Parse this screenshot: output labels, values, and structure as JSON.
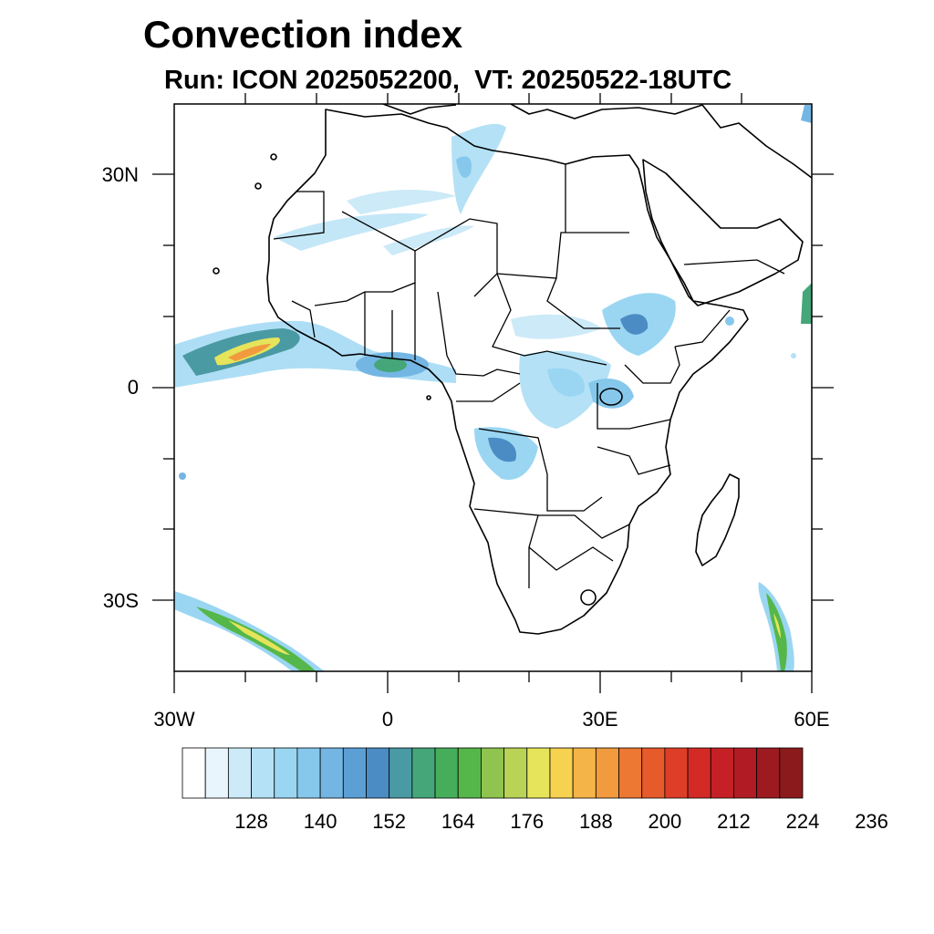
{
  "title": "Convection index",
  "subtitle": "Run: ICON 2025052200,  VT: 20250522-18UTC",
  "map": {
    "extent": {
      "lon": [
        -30,
        60
      ],
      "lat": [
        -40,
        40
      ]
    },
    "lat_labels": [
      "30N",
      "0",
      "30S"
    ],
    "lon_labels": [
      "30W",
      "0",
      "30E",
      "60E"
    ],
    "field_name": "Convection index"
  },
  "colorbar": {
    "colors": [
      "#ffffff",
      "#e8f5fc",
      "#cceaf7",
      "#b4e1f5",
      "#9ad6f2",
      "#86c8ec",
      "#74b6e3",
      "#5b9fd5",
      "#4b8cc4",
      "#4a9aa4",
      "#45a67a",
      "#46ae5a",
      "#55b74a",
      "#8fc44e",
      "#b8d355",
      "#e6e45a",
      "#f7d250",
      "#f5b447",
      "#f19a3e",
      "#ec7833",
      "#e65a2b",
      "#de3e27",
      "#d42a26",
      "#c42026",
      "#b11b23",
      "#9d1b20",
      "#8b1a1c"
    ],
    "labels": [
      "128",
      "140",
      "152",
      "164",
      "176",
      "188",
      "200",
      "212",
      "224",
      "236"
    ]
  }
}
